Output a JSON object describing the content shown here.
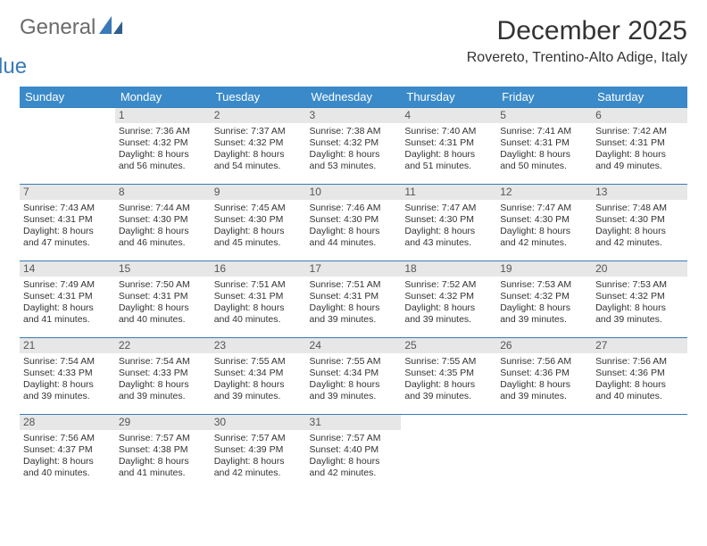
{
  "logo": {
    "part1": "General",
    "part2": "Blue"
  },
  "title": "December 2025",
  "location": "Rovereto, Trentino-Alto Adige, Italy",
  "colors": {
    "header_bg": "#3a8ac9",
    "header_text": "#ffffff",
    "border": "#3a7ab8",
    "daynum_bg": "#e7e7e7",
    "logo_gray": "#6b6b6b",
    "logo_blue": "#3a7ab8"
  },
  "weekdays": [
    "Sunday",
    "Monday",
    "Tuesday",
    "Wednesday",
    "Thursday",
    "Friday",
    "Saturday"
  ],
  "weeks": [
    [
      {
        "blank": true
      },
      {
        "day": "1",
        "sunrise": "Sunrise: 7:36 AM",
        "sunset": "Sunset: 4:32 PM",
        "daylight1": "Daylight: 8 hours",
        "daylight2": "and 56 minutes."
      },
      {
        "day": "2",
        "sunrise": "Sunrise: 7:37 AM",
        "sunset": "Sunset: 4:32 PM",
        "daylight1": "Daylight: 8 hours",
        "daylight2": "and 54 minutes."
      },
      {
        "day": "3",
        "sunrise": "Sunrise: 7:38 AM",
        "sunset": "Sunset: 4:32 PM",
        "daylight1": "Daylight: 8 hours",
        "daylight2": "and 53 minutes."
      },
      {
        "day": "4",
        "sunrise": "Sunrise: 7:40 AM",
        "sunset": "Sunset: 4:31 PM",
        "daylight1": "Daylight: 8 hours",
        "daylight2": "and 51 minutes."
      },
      {
        "day": "5",
        "sunrise": "Sunrise: 7:41 AM",
        "sunset": "Sunset: 4:31 PM",
        "daylight1": "Daylight: 8 hours",
        "daylight2": "and 50 minutes."
      },
      {
        "day": "6",
        "sunrise": "Sunrise: 7:42 AM",
        "sunset": "Sunset: 4:31 PM",
        "daylight1": "Daylight: 8 hours",
        "daylight2": "and 49 minutes."
      }
    ],
    [
      {
        "day": "7",
        "sunrise": "Sunrise: 7:43 AM",
        "sunset": "Sunset: 4:31 PM",
        "daylight1": "Daylight: 8 hours",
        "daylight2": "and 47 minutes."
      },
      {
        "day": "8",
        "sunrise": "Sunrise: 7:44 AM",
        "sunset": "Sunset: 4:30 PM",
        "daylight1": "Daylight: 8 hours",
        "daylight2": "and 46 minutes."
      },
      {
        "day": "9",
        "sunrise": "Sunrise: 7:45 AM",
        "sunset": "Sunset: 4:30 PM",
        "daylight1": "Daylight: 8 hours",
        "daylight2": "and 45 minutes."
      },
      {
        "day": "10",
        "sunrise": "Sunrise: 7:46 AM",
        "sunset": "Sunset: 4:30 PM",
        "daylight1": "Daylight: 8 hours",
        "daylight2": "and 44 minutes."
      },
      {
        "day": "11",
        "sunrise": "Sunrise: 7:47 AM",
        "sunset": "Sunset: 4:30 PM",
        "daylight1": "Daylight: 8 hours",
        "daylight2": "and 43 minutes."
      },
      {
        "day": "12",
        "sunrise": "Sunrise: 7:47 AM",
        "sunset": "Sunset: 4:30 PM",
        "daylight1": "Daylight: 8 hours",
        "daylight2": "and 42 minutes."
      },
      {
        "day": "13",
        "sunrise": "Sunrise: 7:48 AM",
        "sunset": "Sunset: 4:30 PM",
        "daylight1": "Daylight: 8 hours",
        "daylight2": "and 42 minutes."
      }
    ],
    [
      {
        "day": "14",
        "sunrise": "Sunrise: 7:49 AM",
        "sunset": "Sunset: 4:31 PM",
        "daylight1": "Daylight: 8 hours",
        "daylight2": "and 41 minutes."
      },
      {
        "day": "15",
        "sunrise": "Sunrise: 7:50 AM",
        "sunset": "Sunset: 4:31 PM",
        "daylight1": "Daylight: 8 hours",
        "daylight2": "and 40 minutes."
      },
      {
        "day": "16",
        "sunrise": "Sunrise: 7:51 AM",
        "sunset": "Sunset: 4:31 PM",
        "daylight1": "Daylight: 8 hours",
        "daylight2": "and 40 minutes."
      },
      {
        "day": "17",
        "sunrise": "Sunrise: 7:51 AM",
        "sunset": "Sunset: 4:31 PM",
        "daylight1": "Daylight: 8 hours",
        "daylight2": "and 39 minutes."
      },
      {
        "day": "18",
        "sunrise": "Sunrise: 7:52 AM",
        "sunset": "Sunset: 4:32 PM",
        "daylight1": "Daylight: 8 hours",
        "daylight2": "and 39 minutes."
      },
      {
        "day": "19",
        "sunrise": "Sunrise: 7:53 AM",
        "sunset": "Sunset: 4:32 PM",
        "daylight1": "Daylight: 8 hours",
        "daylight2": "and 39 minutes."
      },
      {
        "day": "20",
        "sunrise": "Sunrise: 7:53 AM",
        "sunset": "Sunset: 4:32 PM",
        "daylight1": "Daylight: 8 hours",
        "daylight2": "and 39 minutes."
      }
    ],
    [
      {
        "day": "21",
        "sunrise": "Sunrise: 7:54 AM",
        "sunset": "Sunset: 4:33 PM",
        "daylight1": "Daylight: 8 hours",
        "daylight2": "and 39 minutes."
      },
      {
        "day": "22",
        "sunrise": "Sunrise: 7:54 AM",
        "sunset": "Sunset: 4:33 PM",
        "daylight1": "Daylight: 8 hours",
        "daylight2": "and 39 minutes."
      },
      {
        "day": "23",
        "sunrise": "Sunrise: 7:55 AM",
        "sunset": "Sunset: 4:34 PM",
        "daylight1": "Daylight: 8 hours",
        "daylight2": "and 39 minutes."
      },
      {
        "day": "24",
        "sunrise": "Sunrise: 7:55 AM",
        "sunset": "Sunset: 4:34 PM",
        "daylight1": "Daylight: 8 hours",
        "daylight2": "and 39 minutes."
      },
      {
        "day": "25",
        "sunrise": "Sunrise: 7:55 AM",
        "sunset": "Sunset: 4:35 PM",
        "daylight1": "Daylight: 8 hours",
        "daylight2": "and 39 minutes."
      },
      {
        "day": "26",
        "sunrise": "Sunrise: 7:56 AM",
        "sunset": "Sunset: 4:36 PM",
        "daylight1": "Daylight: 8 hours",
        "daylight2": "and 39 minutes."
      },
      {
        "day": "27",
        "sunrise": "Sunrise: 7:56 AM",
        "sunset": "Sunset: 4:36 PM",
        "daylight1": "Daylight: 8 hours",
        "daylight2": "and 40 minutes."
      }
    ],
    [
      {
        "day": "28",
        "sunrise": "Sunrise: 7:56 AM",
        "sunset": "Sunset: 4:37 PM",
        "daylight1": "Daylight: 8 hours",
        "daylight2": "and 40 minutes."
      },
      {
        "day": "29",
        "sunrise": "Sunrise: 7:57 AM",
        "sunset": "Sunset: 4:38 PM",
        "daylight1": "Daylight: 8 hours",
        "daylight2": "and 41 minutes."
      },
      {
        "day": "30",
        "sunrise": "Sunrise: 7:57 AM",
        "sunset": "Sunset: 4:39 PM",
        "daylight1": "Daylight: 8 hours",
        "daylight2": "and 42 minutes."
      },
      {
        "day": "31",
        "sunrise": "Sunrise: 7:57 AM",
        "sunset": "Sunset: 4:40 PM",
        "daylight1": "Daylight: 8 hours",
        "daylight2": "and 42 minutes."
      },
      {
        "blank": true
      },
      {
        "blank": true
      },
      {
        "blank": true
      }
    ]
  ]
}
